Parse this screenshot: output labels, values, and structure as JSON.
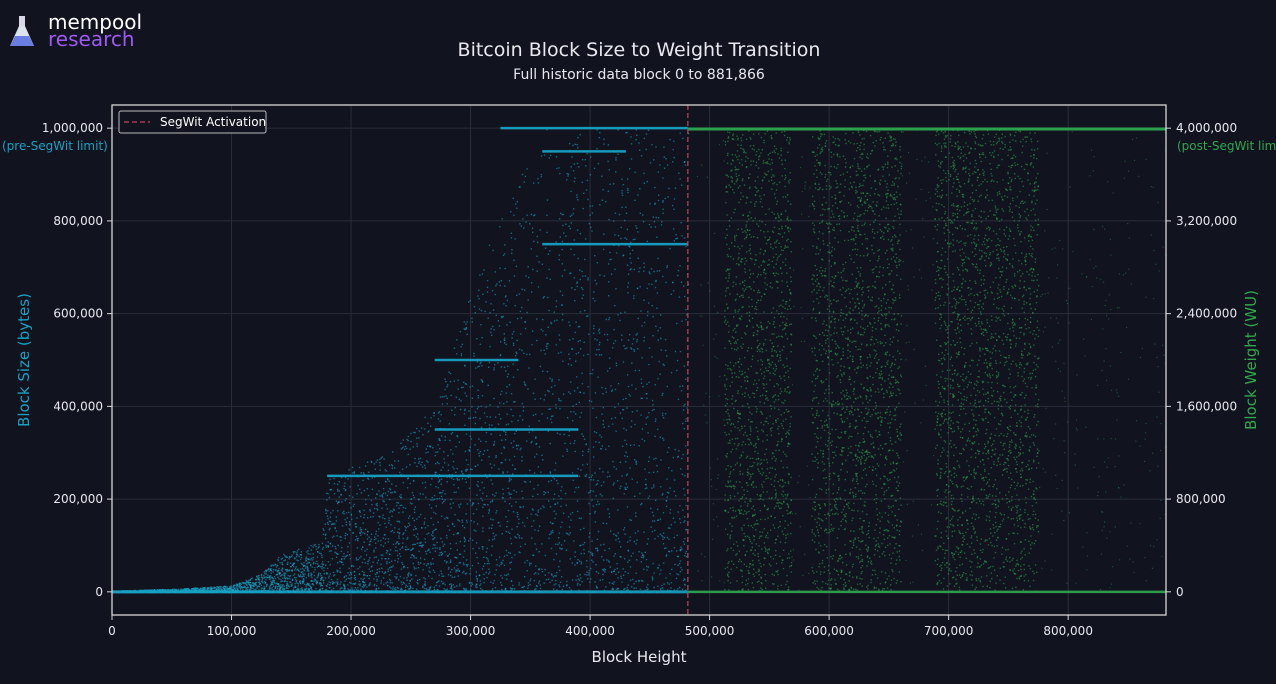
{
  "logo": {
    "line1": "mempool",
    "line2": "research"
  },
  "chart_data": {
    "type": "scatter",
    "title": "Bitcoin Block Size to Weight Transition",
    "subtitle": "Full historic data block 0 to 881,866",
    "xlabel": "Block Height",
    "ylabel_left": "Block Size (bytes)",
    "ylabel_right": "Block Weight (WU)",
    "xlim": [
      0,
      881866
    ],
    "ylim_left": [
      -50000,
      1050000
    ],
    "ylim_right": [
      -200000,
      4200000
    ],
    "x_ticks": [
      0,
      100000,
      200000,
      300000,
      400000,
      500000,
      600000,
      700000,
      800000
    ],
    "x_tick_labels": [
      "0",
      "100,000",
      "200,000",
      "300,000",
      "400,000",
      "500,000",
      "600,000",
      "700,000",
      "800,000"
    ],
    "y_left_ticks": [
      0,
      200000,
      400000,
      600000,
      800000,
      1000000
    ],
    "y_left_tick_labels": [
      "0",
      "200,000",
      "400,000",
      "600,000",
      "800,000",
      "1,000,000"
    ],
    "y_right_ticks": [
      0,
      800000,
      1600000,
      2400000,
      3200000,
      4000000
    ],
    "y_right_tick_labels": [
      "0",
      "800,000",
      "1,600,000",
      "2,400,000",
      "3,200,000",
      "4,000,000"
    ],
    "grid": true,
    "legend": {
      "position": "top-left",
      "entries": [
        "SegWit Activation"
      ]
    },
    "annotations": [
      {
        "text": "(pre-SegWit limit)",
        "axis": "left",
        "y": 1000000
      },
      {
        "text": "(post-SegWit limit)",
        "axis": "right",
        "y": 4000000
      }
    ],
    "segwit_activation_height": 481824,
    "series": [
      {
        "name": "",
        "axis": "left",
        "color": "#17a2c4",
        "x_range": [
          0,
          481824
        ],
        "envelope": [
          [
            0,
            3000
          ],
          [
            60000,
            8000
          ],
          [
            100000,
            15000
          ],
          [
            125000,
            40000
          ],
          [
            140000,
            80000
          ],
          [
            175000,
            110000
          ],
          [
            180000,
            255000
          ],
          [
            230000,
            300000
          ],
          [
            270000,
            400000
          ],
          [
            300000,
            650000
          ],
          [
            330000,
            850000
          ],
          [
            360000,
            1000000
          ],
          [
            481824,
            1000000
          ]
        ],
        "bands": [
          {
            "y": 1000000,
            "x_from": 325000,
            "x_to": 481824
          },
          {
            "y": 750000,
            "x_from": 360000,
            "x_to": 481824
          },
          {
            "y": 250000,
            "x_from": 180000,
            "x_to": 390000
          },
          {
            "y": 500000,
            "x_from": 270000,
            "x_to": 340000
          },
          {
            "y": 350000,
            "x_from": 270000,
            "x_to": 390000
          },
          {
            "y": 950000,
            "x_from": 360000,
            "x_to": 430000
          }
        ]
      },
      {
        "name": "",
        "axis": "right",
        "color": "#2fa84f",
        "x_range": [
          481824,
          881866
        ],
        "limit_band": {
          "y": 3993000,
          "x_from": 481824,
          "x_to": 881866
        },
        "dense_ranges": [
          [
            512000,
            568000
          ],
          [
            585000,
            660000
          ],
          [
            688000,
            775000
          ]
        ],
        "sparse_ranges": [
          [
            489000,
            512000
          ],
          [
            568000,
            585000
          ],
          [
            660000,
            688000
          ],
          [
            775000,
            881866
          ]
        ]
      }
    ]
  }
}
